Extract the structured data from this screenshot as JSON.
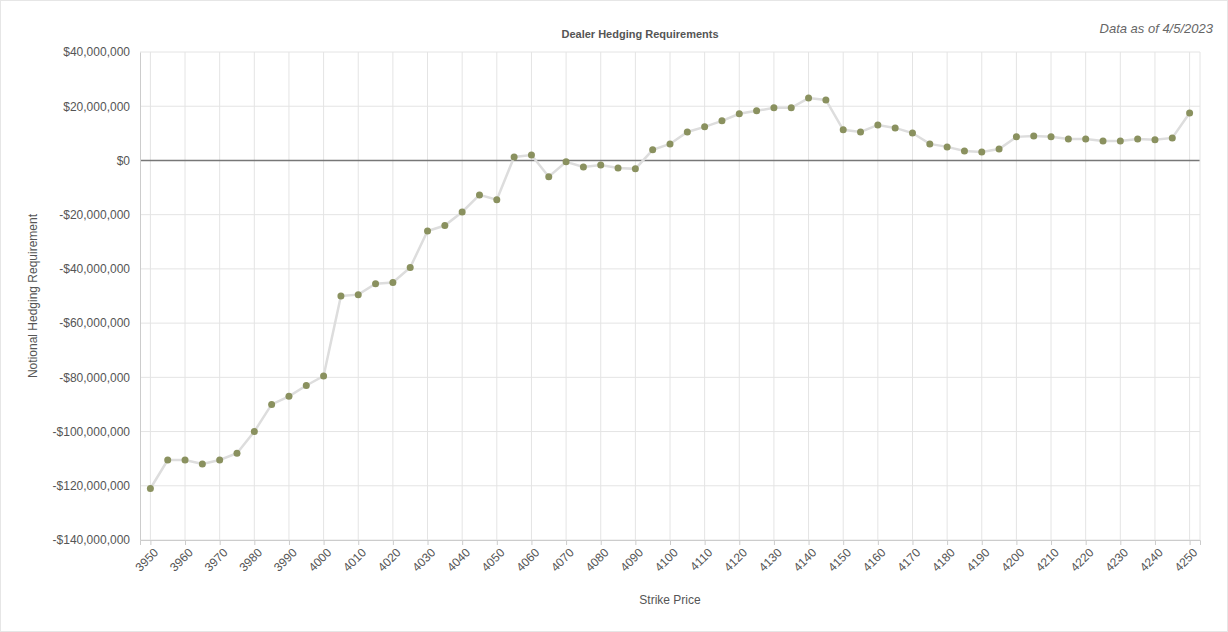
{
  "chart_data": {
    "type": "line",
    "title": "Dealer Hedging Requirements",
    "subtitle": "Data as of 4/5/2023",
    "x_label": "Strike Price",
    "y_label": "Notional Hedging Requirement",
    "x": [
      3950,
      3955,
      3960,
      3965,
      3970,
      3975,
      3980,
      3985,
      3990,
      3995,
      4000,
      4005,
      4010,
      4015,
      4020,
      4025,
      4030,
      4035,
      4040,
      4045,
      4050,
      4055,
      4060,
      4065,
      4070,
      4075,
      4080,
      4085,
      4090,
      4095,
      4100,
      4105,
      4110,
      4115,
      4120,
      4125,
      4130,
      4135,
      4140,
      4145,
      4150,
      4155,
      4160,
      4165,
      4170,
      4175,
      4180,
      4185,
      4190,
      4195,
      4200,
      4205,
      4210,
      4215,
      4220,
      4225,
      4230,
      4235,
      4240,
      4245,
      4250
    ],
    "series": [
      {
        "color": "#8a915f",
        "marker": "circle",
        "values": [
          -121000000,
          -110500000,
          -110500000,
          -112000000,
          -110500000,
          -108000000,
          -100000000,
          -90000000,
          -87000000,
          -83000000,
          -79500000,
          -50000000,
          -49500000,
          -45500000,
          -45000000,
          -39500000,
          -26000000,
          -24000000,
          -19000000,
          -12700000,
          -14500000,
          1300000,
          2000000,
          -6000000,
          -500000,
          -2400000,
          -1700000,
          -2800000,
          -3100000,
          3900000,
          6100000,
          10500000,
          12400000,
          14600000,
          17200000,
          18300000,
          19400000,
          19400000,
          23000000,
          22300000,
          11300000,
          10500000,
          13100000,
          12000000,
          10100000,
          6100000,
          5000000,
          3500000,
          3100000,
          4200000,
          8700000,
          9000000,
          8700000,
          7900000,
          7900000,
          7200000,
          7200000,
          7900000,
          7600000,
          8300000,
          17500000
        ]
      }
    ],
    "xlim": [
      3947,
      4253
    ],
    "xticks": [
      3950,
      3960,
      3970,
      3980,
      3990,
      4000,
      4010,
      4020,
      4030,
      4040,
      4050,
      4060,
      4070,
      4080,
      4090,
      4100,
      4110,
      4120,
      4130,
      4140,
      4150,
      4160,
      4170,
      4180,
      4190,
      4200,
      4210,
      4220,
      4230,
      4240,
      4250
    ],
    "ylim": [
      -140000000,
      40000000
    ],
    "yticks": [
      {
        "value": -140000000,
        "label": "-$140,000,000"
      },
      {
        "value": -120000000,
        "label": "-$120,000,000"
      },
      {
        "value": -100000000,
        "label": "-$100,000,000"
      },
      {
        "value": -80000000,
        "label": "-$80,000,000"
      },
      {
        "value": -60000000,
        "label": "-$60,000,000"
      },
      {
        "value": -40000000,
        "label": "-$40,000,000"
      },
      {
        "value": -20000000,
        "label": "-$20,000,000"
      },
      {
        "value": 0,
        "label": "$0"
      },
      {
        "value": 20000000,
        "label": "$20,000,000"
      },
      {
        "value": 40000000,
        "label": "$40,000,000"
      }
    ],
    "grid": true
  }
}
